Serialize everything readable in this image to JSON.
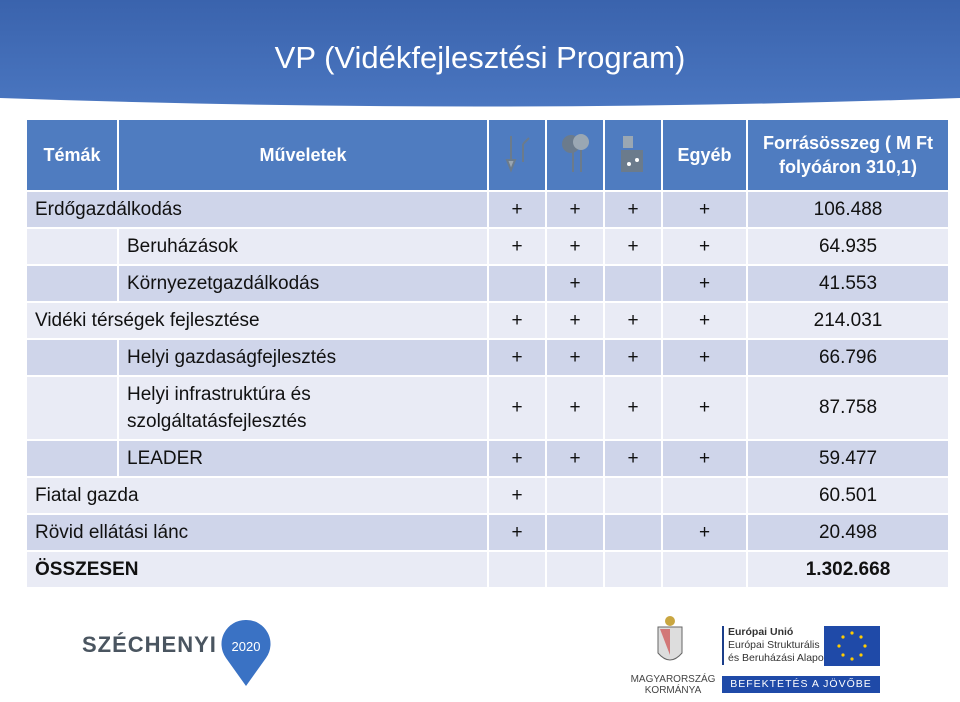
{
  "header": {
    "title": "VP (Vidékfejlesztési Program)"
  },
  "table": {
    "columns": [
      "Témák",
      "Műveletek",
      "Egyéb",
      "Forrásösszeg ( M Ft folyóáron 310,1)"
    ],
    "rows": [
      {
        "label": "Erdőgazdálkodás",
        "level": 0,
        "marks": [
          "+",
          "+",
          "+",
          "+"
        ],
        "total": "106.488"
      },
      {
        "label": "Beruházások",
        "level": 1,
        "marks": [
          "+",
          "+",
          "+",
          "+"
        ],
        "total": "64.935"
      },
      {
        "label": "Környezetgazdálkodás",
        "level": 1,
        "marks": [
          null,
          "+",
          null,
          "+"
        ],
        "total": "41.553"
      },
      {
        "label": "Vidéki térségek fejlesztése",
        "level": 0,
        "marks": [
          "+",
          "+",
          "+",
          "+"
        ],
        "total": "214.031"
      },
      {
        "label": "Helyi gazdaságfejlesztés",
        "level": 1,
        "marks": [
          "+",
          "+",
          "+",
          "+"
        ],
        "total": "66.796"
      },
      {
        "label": "Helyi infrastruktúra és szolgáltatásfejlesztés",
        "level": 1,
        "marks": [
          "+",
          "+",
          "+",
          "+"
        ],
        "total": "87.758"
      },
      {
        "label": "LEADER",
        "level": 1,
        "marks": [
          "+",
          "+",
          "+",
          "+"
        ],
        "total": "59.477"
      },
      {
        "label": "Fiatal gazda",
        "level": 0,
        "marks": [
          "+",
          null,
          null,
          null
        ],
        "total": "60.501"
      },
      {
        "label": "Rövid ellátási lánc",
        "level": 0,
        "marks": [
          "+",
          null,
          null,
          "+"
        ],
        "total": "20.498"
      },
      {
        "label": "ÖSSZESEN",
        "level": 0,
        "bold": true,
        "marks": [
          null,
          null,
          null,
          null
        ],
        "total": "1.302.668"
      }
    ]
  },
  "footer": {
    "szechenyi": "SZÉCHENYI",
    "year": "2020",
    "gov_1": "MAGYARORSZÁG",
    "gov_2": "KORMÁNYA",
    "eu_1": "Európai Unió",
    "eu_2": "Európai Strukturális",
    "eu_3": "és Beruházási Alapok",
    "eu_4": "BEFEKTETÉS A JÖVŐBE"
  }
}
